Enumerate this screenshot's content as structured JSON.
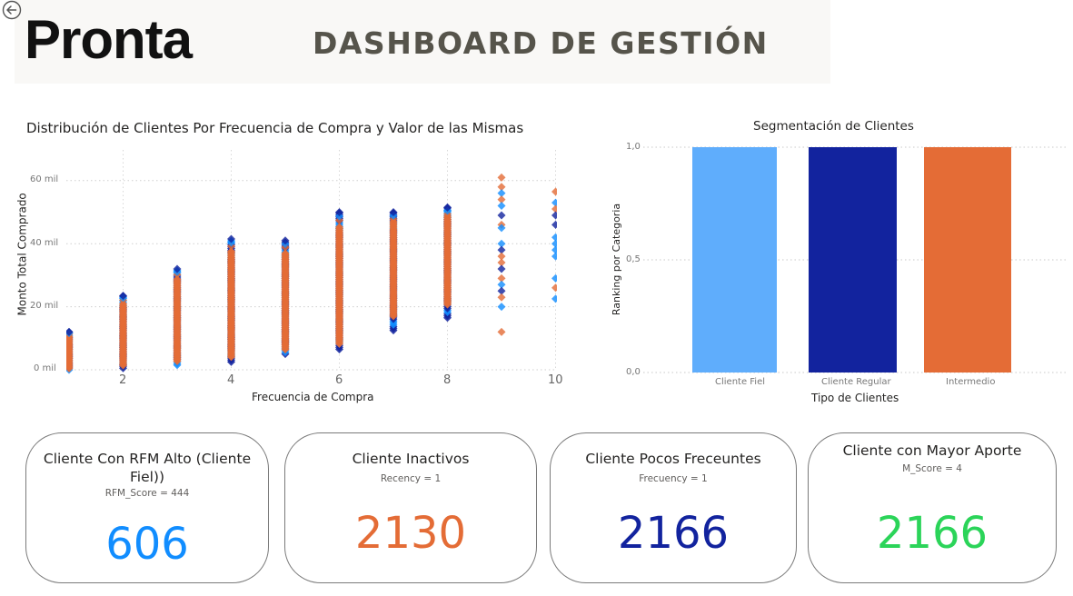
{
  "header": {
    "back_icon": "circle-arrow-left-icon",
    "logo": "Pronta",
    "title": "DASHBOARD DE GESTIÓN"
  },
  "colors": {
    "orange": "#e46c36",
    "dark_blue": "#12239e",
    "light_blue": "#5fadfc",
    "bright_blue": "#118dff",
    "green": "#2bd459",
    "header_bg": "#f9f8f6",
    "title_gray": "#56544b"
  },
  "scatter": {
    "title": "Distribución de Clientes Por Frecuencia de Compra y Valor de las Mismas",
    "xlabel": "Frecuencia de Compra",
    "ylabel": "Monto Total Comprado",
    "yticks": [
      "0 mil",
      "20 mil",
      "40 mil",
      "60 mil"
    ],
    "xticks": [
      "2",
      "4",
      "6",
      "8",
      "10"
    ]
  },
  "bar": {
    "title": "Segmentación de Clientes",
    "xlabel": "Tipo de Clientes",
    "ylabel": "Ranking por Categoria",
    "yticks": [
      "0,0",
      "0,5",
      "1,0"
    ],
    "categories": [
      "Cliente Fiel",
      "Cliente Regular",
      "Intermedio"
    ]
  },
  "cards": [
    {
      "title": "Cliente Con RFM Alto (Cliente Fiel))",
      "subtitle": "RFM_Score = 444",
      "value": "606",
      "color": "#118dff"
    },
    {
      "title": "Cliente Inactivos",
      "subtitle": "Recency = 1",
      "value": "2130",
      "color": "#e46c36"
    },
    {
      "title": "Cliente Pocos Freceuntes",
      "subtitle": "Frecuency = 1",
      "value": "2166",
      "color": "#12239e"
    },
    {
      "title": "Cliente con Mayor Aporte",
      "subtitle": "M_Score = 4",
      "value": "2166",
      "color": "#2bd459"
    }
  ],
  "chart_data": [
    {
      "type": "scatter",
      "title": "Distribución de Clientes Por Frecuencia de Compra y Valor de las Mismas",
      "xlabel": "Frecuencia de Compra",
      "ylabel": "Monto Total Comprado",
      "xlim": [
        1,
        10
      ],
      "ylim": [
        0,
        70
      ],
      "y_unit": "mil",
      "grid": true,
      "legend": "none",
      "series_colors": [
        "#e46c36",
        "#12239e",
        "#118dff"
      ],
      "ranges_by_frequency": [
        {
          "x": 1,
          "min": 0,
          "max": 12
        },
        {
          "x": 2,
          "min": 0.5,
          "max": 23.5
        },
        {
          "x": 3,
          "min": 1.5,
          "max": 32
        },
        {
          "x": 4,
          "min": 2.5,
          "max": 41.5
        },
        {
          "x": 5,
          "min": 5,
          "max": 41
        },
        {
          "x": 6,
          "min": 6.5,
          "max": 50
        },
        {
          "x": 7,
          "min": 12.5,
          "max": 50
        },
        {
          "x": 8,
          "min": 16.5,
          "max": 51.5
        },
        {
          "x": 9,
          "min": 12,
          "max": 61
        },
        {
          "x": 10,
          "min": 22.5,
          "max": 56.5
        }
      ],
      "sparse_points": [
        {
          "x": 9,
          "y": 61,
          "color": "#e46c36"
        },
        {
          "x": 9,
          "y": 58,
          "color": "#e46c36"
        },
        {
          "x": 9,
          "y": 56,
          "color": "#118dff"
        },
        {
          "x": 9,
          "y": 54,
          "color": "#e46c36"
        },
        {
          "x": 9,
          "y": 52,
          "color": "#118dff"
        },
        {
          "x": 9,
          "y": 49,
          "color": "#12239e"
        },
        {
          "x": 9,
          "y": 46,
          "color": "#e46c36"
        },
        {
          "x": 9,
          "y": 45,
          "color": "#118dff"
        },
        {
          "x": 9,
          "y": 40,
          "color": "#118dff"
        },
        {
          "x": 9,
          "y": 38,
          "color": "#12239e"
        },
        {
          "x": 9,
          "y": 36,
          "color": "#e46c36"
        },
        {
          "x": 9,
          "y": 34,
          "color": "#e46c36"
        },
        {
          "x": 9,
          "y": 32,
          "color": "#12239e"
        },
        {
          "x": 9,
          "y": 29,
          "color": "#e46c36"
        },
        {
          "x": 9,
          "y": 27,
          "color": "#118dff"
        },
        {
          "x": 9,
          "y": 25,
          "color": "#12239e"
        },
        {
          "x": 9,
          "y": 23,
          "color": "#e46c36"
        },
        {
          "x": 9,
          "y": 20,
          "color": "#118dff"
        },
        {
          "x": 9,
          "y": 12,
          "color": "#e46c36"
        },
        {
          "x": 10,
          "y": 56.5,
          "color": "#e46c36"
        },
        {
          "x": 10,
          "y": 53,
          "color": "#118dff"
        },
        {
          "x": 10,
          "y": 51,
          "color": "#e46c36"
        },
        {
          "x": 10,
          "y": 49,
          "color": "#12239e"
        },
        {
          "x": 10,
          "y": 46,
          "color": "#12239e"
        },
        {
          "x": 10,
          "y": 42,
          "color": "#118dff"
        },
        {
          "x": 10,
          "y": 40,
          "color": "#118dff"
        },
        {
          "x": 10,
          "y": 38,
          "color": "#118dff"
        },
        {
          "x": 10,
          "y": 36,
          "color": "#118dff"
        },
        {
          "x": 10,
          "y": 29,
          "color": "#118dff"
        },
        {
          "x": 10,
          "y": 26,
          "color": "#e46c36"
        },
        {
          "x": 10,
          "y": 22.5,
          "color": "#118dff"
        }
      ]
    },
    {
      "type": "bar",
      "title": "Segmentación de Clientes",
      "xlabel": "Tipo de Clientes",
      "ylabel": "Ranking por Categoria",
      "categories": [
        "Cliente Fiel",
        "Cliente Regular",
        "Intermedio"
      ],
      "values": [
        1.0,
        1.0,
        1.0
      ],
      "colors": [
        "#5fadfc",
        "#12239e",
        "#e46c36"
      ],
      "ylim": [
        0,
        1
      ],
      "yticks": [
        "0,0",
        "0,5",
        "1,0"
      ],
      "grid": true,
      "legend": "none"
    }
  ]
}
